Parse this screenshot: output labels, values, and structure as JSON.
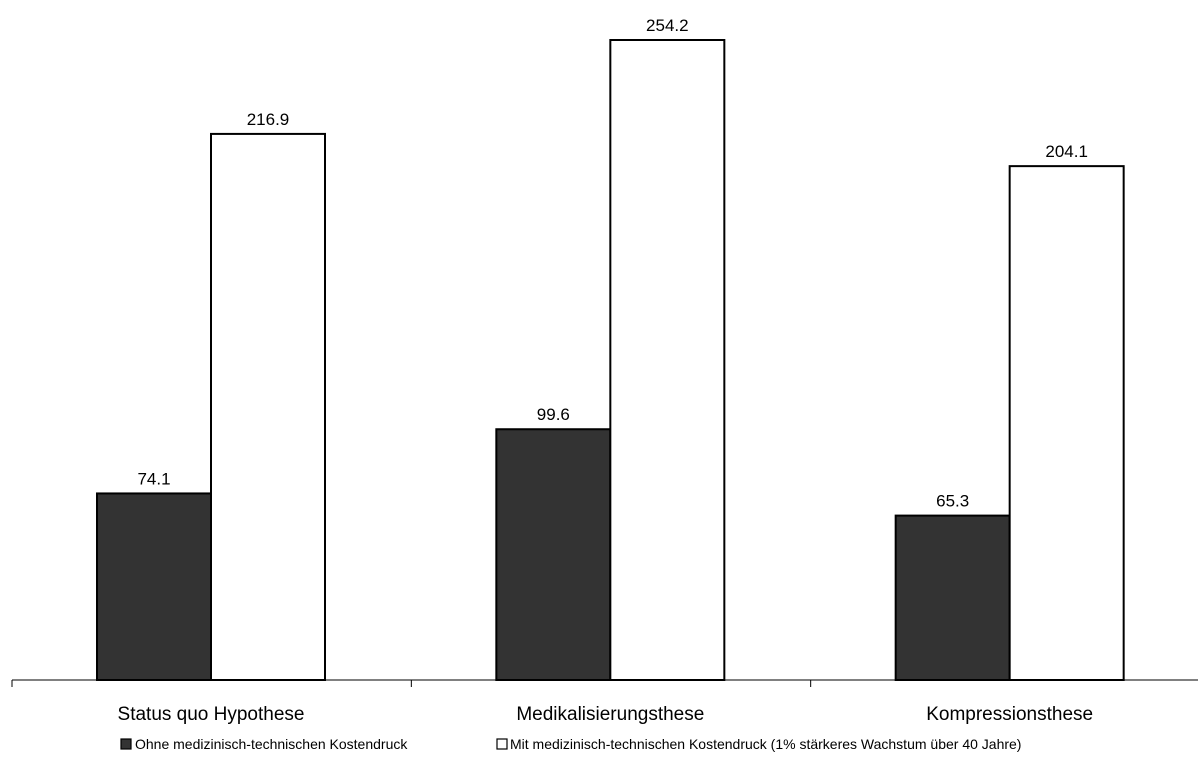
{
  "chart_data": {
    "type": "bar",
    "title": "",
    "xlabel": "",
    "ylabel": "",
    "categories": [
      "Status quo Hypothese",
      "Medikalisierungsthese",
      "Kompressionsthese"
    ],
    "series": [
      {
        "name": "Ohne medizinisch-technischen Kostendruck",
        "color": "#333333",
        "values": [
          74.1,
          99.6,
          65.3
        ],
        "labels": [
          "74.1",
          "99.6",
          "65.3"
        ]
      },
      {
        "name": "Mit medizinisch-technischen Kostendruck (1% stärkeres Wachstum über 40 Jahre)",
        "color": "#ffffff",
        "values": [
          216.9,
          254.2,
          204.1
        ],
        "labels": [
          "216.9",
          "254.2",
          "204.1"
        ]
      }
    ],
    "ylim": [
      0,
      254.2
    ],
    "grid": false,
    "legend_position": "bottom"
  }
}
